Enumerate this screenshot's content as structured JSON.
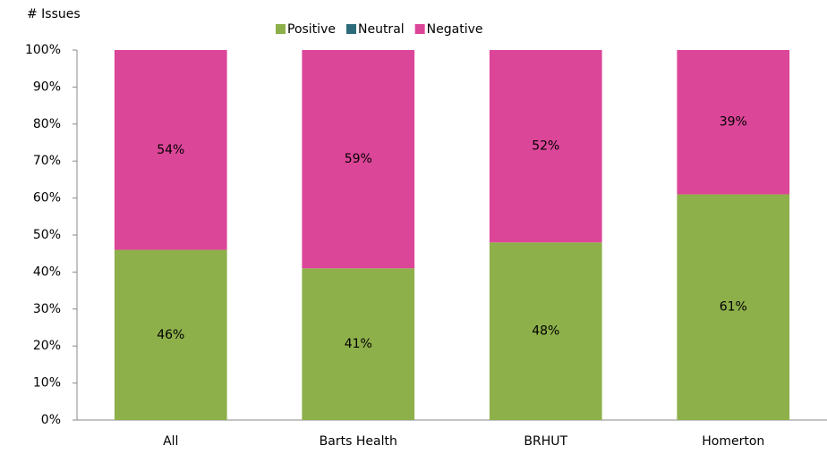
{
  "chart_data": {
    "type": "stacked_bar",
    "ylabel": "# Issues",
    "categories": [
      "All",
      "Barts Health",
      "BRHUT",
      "Homerton"
    ],
    "series": [
      {
        "name": "Positive",
        "color": "#8db04a",
        "values": [
          46,
          41,
          48,
          61
        ],
        "value_labels": [
          "46%",
          "41%",
          "48%",
          "61%"
        ]
      },
      {
        "name": "Neutral",
        "color": "#2e6b7a",
        "values": [
          0,
          0,
          0,
          0
        ]
      },
      {
        "name": "Negative",
        "color": "#dc4699",
        "values": [
          54,
          59,
          52,
          39
        ],
        "value_labels": [
          "54%",
          "59%",
          "52%",
          "39%"
        ]
      }
    ],
    "ylim": [
      0,
      100
    ],
    "yticks": [
      {
        "value": 0,
        "label": "0%"
      },
      {
        "value": 10,
        "label": "10%"
      },
      {
        "value": 20,
        "label": "20%"
      },
      {
        "value": 30,
        "label": "30%"
      },
      {
        "value": 40,
        "label": "40%"
      },
      {
        "value": 50,
        "label": "50%"
      },
      {
        "value": 60,
        "label": "60%"
      },
      {
        "value": 70,
        "label": "70%"
      },
      {
        "value": 80,
        "label": "80%"
      },
      {
        "value": 90,
        "label": "90%"
      },
      {
        "value": 100,
        "label": "100%"
      }
    ],
    "grid": false,
    "legend": "top"
  }
}
